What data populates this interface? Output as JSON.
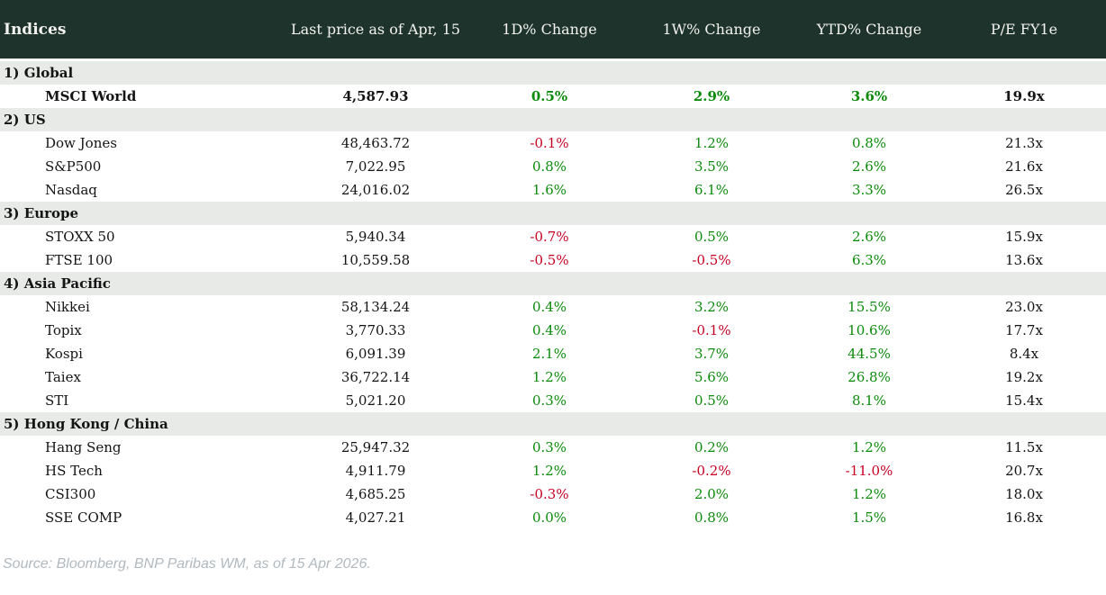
{
  "colors": {
    "header_bg": "#1f332d",
    "header_text": "#f2f2ee",
    "section_bg": "#e7eae7",
    "positive": "#0b8a0b",
    "negative": "#c60022",
    "source_text": "#b1b9bf"
  },
  "chart_data": {
    "type": "table",
    "title": "Indices",
    "columns": [
      "Indices",
      "Last price as of Apr, 15",
      "1D% Change",
      "1W% Change",
      "YTD% Change",
      "P/E FY1e"
    ],
    "sections": [
      {
        "label": "1) Global",
        "rows": [
          {
            "name": "MSCI World",
            "bold": true,
            "values": [
              "4,587.93",
              "0.5%",
              "2.9%",
              "3.6%",
              "19.9x"
            ]
          }
        ]
      },
      {
        "label": "2) US",
        "rows": [
          {
            "name": "Dow Jones",
            "values": [
              "48,463.72",
              "-0.1%",
              "1.2%",
              "0.8%",
              "21.3x"
            ]
          },
          {
            "name": "S&P500",
            "values": [
              "7,022.95",
              "0.8%",
              "3.5%",
              "2.6%",
              "21.6x"
            ]
          },
          {
            "name": "Nasdaq",
            "values": [
              "24,016.02",
              "1.6%",
              "6.1%",
              "3.3%",
              "26.5x"
            ]
          }
        ]
      },
      {
        "label": "3) Europe",
        "rows": [
          {
            "name": "STOXX 50",
            "values": [
              "5,940.34",
              "-0.7%",
              "0.5%",
              "2.6%",
              "15.9x"
            ]
          },
          {
            "name": "FTSE 100",
            "values": [
              "10,559.58",
              "-0.5%",
              "-0.5%",
              "6.3%",
              "13.6x"
            ]
          }
        ]
      },
      {
        "label": "4) Asia Pacific",
        "rows": [
          {
            "name": "Nikkei",
            "values": [
              "58,134.24",
              "0.4%",
              "3.2%",
              "15.5%",
              "23.0x"
            ]
          },
          {
            "name": "Topix",
            "values": [
              "3,770.33",
              "0.4%",
              "-0.1%",
              "10.6%",
              "17.7x"
            ]
          },
          {
            "name": "Kospi",
            "values": [
              "6,091.39",
              "2.1%",
              "3.7%",
              "44.5%",
              "8.4x"
            ]
          },
          {
            "name": "Taiex",
            "values": [
              "36,722.14",
              "1.2%",
              "5.6%",
              "26.8%",
              "19.2x"
            ]
          },
          {
            "name": "STI",
            "values": [
              "5,021.20",
              "0.3%",
              "0.5%",
              "8.1%",
              "15.4x"
            ]
          }
        ]
      },
      {
        "label": "5) Hong Kong / China",
        "rows": [
          {
            "name": "Hang Seng",
            "values": [
              "25,947.32",
              "0.3%",
              "0.2%",
              "1.2%",
              "11.5x"
            ]
          },
          {
            "name": "HS Tech",
            "values": [
              "4,911.79",
              "1.2%",
              "-0.2%",
              "-11.0%",
              "20.7x"
            ]
          },
          {
            "name": "CSI300",
            "values": [
              "4,685.25",
              "-0.3%",
              "2.0%",
              "1.2%",
              "18.0x"
            ]
          },
          {
            "name": "SSE COMP",
            "values": [
              "4,027.21",
              "0.0%",
              "0.8%",
              "1.5%",
              "16.8x"
            ]
          }
        ]
      }
    ]
  },
  "footer": {
    "source": "Source: Bloomberg, BNP Paribas WM, as of 15 Apr 2026."
  }
}
